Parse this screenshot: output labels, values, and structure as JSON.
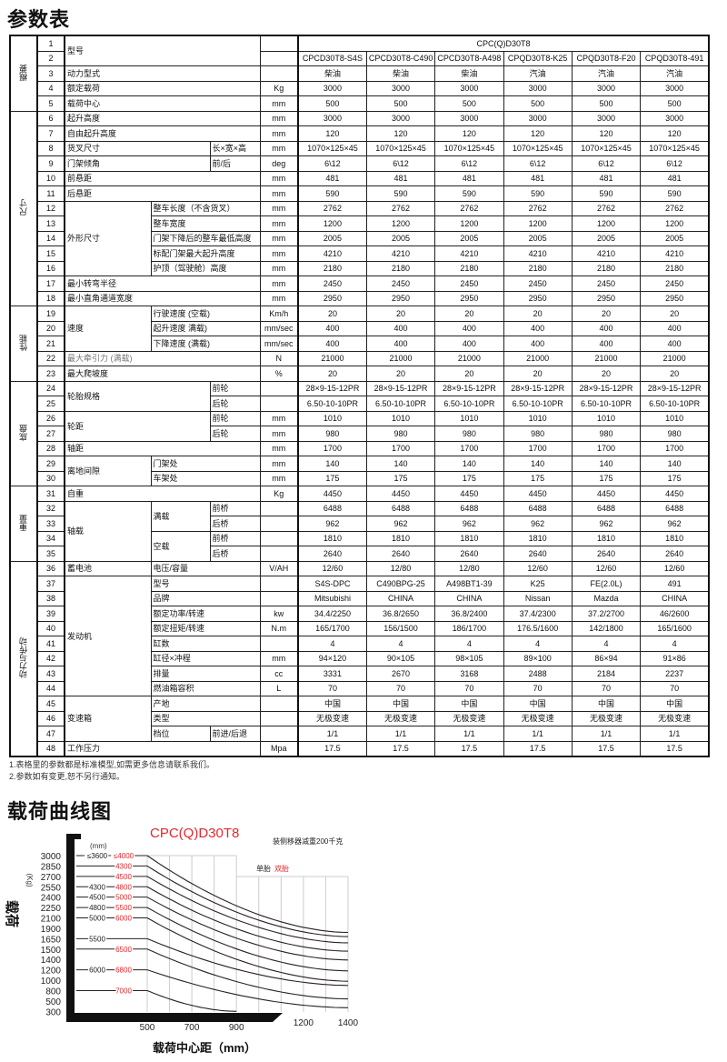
{
  "titles": {
    "spec": "参数表",
    "chart": "载荷曲线图"
  },
  "table": {
    "rows": [
      {
        "cat": "概要",
        "no": "1",
        "a": "型号",
        "unit": "",
        "v": [
          "CPC(Q)D30T8"
        ]
      },
      {
        "no": "2",
        "unit": "",
        "v": [
          "CPCD30T8-S4S",
          "CPCD30T8-C490",
          "CPCD30T8-A498",
          "CPQD30T8-K25",
          "CPQD30T8-F20",
          "CPQD30T8-491"
        ]
      },
      {
        "no": "3",
        "a": "动力型式",
        "unit": "",
        "v": [
          "柴油",
          "柴油",
          "柴油",
          "汽油",
          "汽油",
          "汽油"
        ]
      },
      {
        "no": "4",
        "a": "额定载荷",
        "unit": "Kg",
        "v": [
          "3000",
          "3000",
          "3000",
          "3000",
          "3000",
          "3000"
        ]
      },
      {
        "no": "5",
        "a": "载荷中心",
        "unit": "mm",
        "v": [
          "500",
          "500",
          "500",
          "500",
          "500",
          "500"
        ]
      },
      {
        "cat": "尺寸",
        "no": "6",
        "a": "起升高度",
        "unit": "mm",
        "v": [
          "3000",
          "3000",
          "3000",
          "3000",
          "3000",
          "3000"
        ]
      },
      {
        "no": "7",
        "a": "自由起升高度",
        "unit": "mm",
        "v": [
          "120",
          "120",
          "120",
          "120",
          "120",
          "120"
        ]
      },
      {
        "no": "8",
        "a": "货叉尺寸",
        "c": "长×宽×高",
        "unit": "mm",
        "v": [
          "1070×125×45",
          "1070×125×45",
          "1070×125×45",
          "1070×125×45",
          "1070×125×45",
          "1070×125×45"
        ]
      },
      {
        "no": "9",
        "a": "门架倾角",
        "c": "前/后",
        "unit": "deg",
        "v": [
          "6\\12",
          "6\\12",
          "6\\12",
          "6\\12",
          "6\\12",
          "6\\12"
        ]
      },
      {
        "no": "10",
        "a": "前悬距",
        "unit": "mm",
        "v": [
          "481",
          "481",
          "481",
          "481",
          "481",
          "481"
        ]
      },
      {
        "no": "11",
        "a": "后悬距",
        "unit": "mm",
        "v": [
          "590",
          "590",
          "590",
          "590",
          "590",
          "590"
        ]
      },
      {
        "no": "12",
        "a": "外形尺寸",
        "b": "整车长度（不含货叉）",
        "unit": "mm",
        "v": [
          "2762",
          "2762",
          "2762",
          "2762",
          "2762",
          "2762"
        ]
      },
      {
        "no": "13",
        "b": "整车宽度",
        "unit": "mm",
        "v": [
          "1200",
          "1200",
          "1200",
          "1200",
          "1200",
          "1200"
        ]
      },
      {
        "no": "14",
        "b": "门架下降后的整车最低高度",
        "unit": "mm",
        "v": [
          "2005",
          "2005",
          "2005",
          "2005",
          "2005",
          "2005"
        ]
      },
      {
        "no": "15",
        "b": "标配门架最大起升高度",
        "unit": "mm",
        "v": [
          "4210",
          "4210",
          "4210",
          "4210",
          "4210",
          "4210"
        ]
      },
      {
        "no": "16",
        "b": "护顶（驾驶舱）高度",
        "unit": "mm",
        "v": [
          "2180",
          "2180",
          "2180",
          "2180",
          "2180",
          "2180"
        ]
      },
      {
        "no": "17",
        "a": "最小转弯半径",
        "unit": "mm",
        "v": [
          "2450",
          "2450",
          "2450",
          "2450",
          "2450",
          "2450"
        ]
      },
      {
        "no": "18",
        "a": "最小直角通道宽度",
        "unit": "mm",
        "v": [
          "2950",
          "2950",
          "2950",
          "2950",
          "2950",
          "2950"
        ]
      },
      {
        "cat": "性能",
        "no": "19",
        "a": "速度",
        "b": "行驶速度 (空载)",
        "unit": "Km/h",
        "v": [
          "20",
          "20",
          "20",
          "20",
          "20",
          "20"
        ]
      },
      {
        "no": "20",
        "b": "起升速度 满载)",
        "unit": "mm/sec",
        "v": [
          "400",
          "400",
          "400",
          "400",
          "400",
          "400"
        ]
      },
      {
        "no": "21",
        "b": "下降速度 (满载)",
        "unit": "mm/sec",
        "v": [
          "400",
          "400",
          "400",
          "400",
          "400",
          "400"
        ]
      },
      {
        "no": "22",
        "a": "最大牵引力 (满载)",
        "unit": "N",
        "v": [
          "21000",
          "21000",
          "21000",
          "21000",
          "21000",
          "21000"
        ]
      },
      {
        "no": "23",
        "a": "最大爬坡度",
        "unit": "%",
        "v": [
          "20",
          "20",
          "20",
          "20",
          "20",
          "20"
        ]
      },
      {
        "cat": "底盘",
        "no": "24",
        "a": "轮胎规格",
        "c": "前轮",
        "unit": "",
        "v": [
          "28×9-15-12PR",
          "28×9-15-12PR",
          "28×9-15-12PR",
          "28×9-15-12PR",
          "28×9-15-12PR",
          "28×9-15-12PR"
        ]
      },
      {
        "no": "25",
        "c": "后轮",
        "unit": "",
        "v": [
          "6.50-10-10PR",
          "6.50-10-10PR",
          "6.50-10-10PR",
          "6.50-10-10PR",
          "6.50-10-10PR",
          "6.50-10-10PR"
        ]
      },
      {
        "no": "26",
        "a": "轮距",
        "c": "前轮",
        "unit": "mm",
        "v": [
          "1010",
          "1010",
          "1010",
          "1010",
          "1010",
          "1010"
        ]
      },
      {
        "no": "27",
        "c": "后轮",
        "unit": "mm",
        "v": [
          "980",
          "980",
          "980",
          "980",
          "980",
          "980"
        ]
      },
      {
        "no": "28",
        "a": "轴距",
        "unit": "mm",
        "v": [
          "1700",
          "1700",
          "1700",
          "1700",
          "1700",
          "1700"
        ]
      },
      {
        "no": "29",
        "a": "离地间隙",
        "b": "门架处",
        "unit": "mm",
        "v": [
          "140",
          "140",
          "140",
          "140",
          "140",
          "140"
        ]
      },
      {
        "no": "30",
        "b": "车架处",
        "unit": "mm",
        "v": [
          "175",
          "175",
          "175",
          "175",
          "175",
          "175"
        ]
      },
      {
        "cat": "重量",
        "no": "31",
        "a": "自重",
        "unit": "Kg",
        "v": [
          "4450",
          "4450",
          "4450",
          "4450",
          "4450",
          "4450"
        ]
      },
      {
        "no": "32",
        "a": "轴载",
        "b": "满载",
        "c": "前桥",
        "unit": "",
        "v": [
          "6488",
          "6488",
          "6488",
          "6488",
          "6488",
          "6488"
        ]
      },
      {
        "no": "33",
        "c": "后桥",
        "unit": "",
        "v": [
          "962",
          "962",
          "962",
          "962",
          "962",
          "962"
        ]
      },
      {
        "no": "34",
        "b": "空载",
        "c": "前桥",
        "unit": "",
        "v": [
          "1810",
          "1810",
          "1810",
          "1810",
          "1810",
          "1810"
        ]
      },
      {
        "no": "35",
        "c": "后桥",
        "unit": "",
        "v": [
          "2640",
          "2640",
          "2640",
          "2640",
          "2640",
          "2640"
        ]
      },
      {
        "cat": "动力与传动",
        "no": "36",
        "a": "蓄电池",
        "b": "电压/容量",
        "unit": "V/AH",
        "v": [
          "12/60",
          "12/80",
          "12/80",
          "12/60",
          "12/60",
          "12/60"
        ]
      },
      {
        "no": "37",
        "a": "发动机",
        "b": "型号",
        "unit": "",
        "v": [
          "S4S-DPC",
          "C490BPG-25",
          "A498BT1-39",
          "K25",
          "FE(2.0L)",
          "491"
        ]
      },
      {
        "no": "38",
        "b": "品牌",
        "unit": "",
        "v": [
          "Mitsubishi",
          "CHINA",
          "CHINA",
          "Nissan",
          "Mazda",
          "CHINA"
        ]
      },
      {
        "no": "39",
        "b": "额定功率/转速",
        "unit": "kw",
        "v": [
          "34.4/2250",
          "36.8/2650",
          "36.8/2400",
          "37.4/2300",
          "37.2/2700",
          "46/2600"
        ]
      },
      {
        "no": "40",
        "b": "额定扭矩/转速",
        "unit": "N.m",
        "v": [
          "165/1700",
          "156/1500",
          "186/1700",
          "176.5/1600",
          "142/1800",
          "165/1600"
        ]
      },
      {
        "no": "41",
        "b": "缸数",
        "unit": "",
        "v": [
          "4",
          "4",
          "4",
          "4",
          "4",
          "4"
        ]
      },
      {
        "no": "42",
        "b": "缸径×冲程",
        "unit": "mm",
        "v": [
          "94×120",
          "90×105",
          "98×105",
          "89×100",
          "86×94",
          "91×86"
        ]
      },
      {
        "no": "43",
        "b": "排量",
        "unit": "cc",
        "v": [
          "3331",
          "2670",
          "3168",
          "2488",
          "2184",
          "2237"
        ]
      },
      {
        "no": "44",
        "b": "燃油箱容积",
        "unit": "L",
        "v": [
          "70",
          "70",
          "70",
          "70",
          "70",
          "70"
        ]
      },
      {
        "no": "45",
        "a": "变速箱",
        "b": "产地",
        "unit": "",
        "v": [
          "中国",
          "中国",
          "中国",
          "中国",
          "中国",
          "中国"
        ]
      },
      {
        "no": "46",
        "b": "类型",
        "unit": "",
        "v": [
          "无极变速",
          "无极变速",
          "无极变速",
          "无极变速",
          "无极变速",
          "无极变速"
        ]
      },
      {
        "no": "47",
        "b": "档位",
        "c": "前进/后退",
        "unit": "",
        "v": [
          "1/1",
          "1/1",
          "1/1",
          "1/1",
          "1/1",
          "1/1"
        ]
      },
      {
        "no": "48",
        "a": "工作压力",
        "unit": "Mpa",
        "v": [
          "17.5",
          "17.5",
          "17.5",
          "17.5",
          "17.5",
          "17.5"
        ]
      }
    ]
  },
  "notes": [
    "1.表格里的参数都是标准模型,如需更多信息请联系我们。",
    "2.参数如有变更,恕不另行通知。"
  ],
  "chart_data": {
    "type": "line",
    "title": "CPC(Q)D30T8",
    "annotation": "装侧移器减重200千克",
    "legend": [
      {
        "name": "单胎",
        "color": "#222222"
      },
      {
        "name": "双胎",
        "color": "#e8262b"
      }
    ],
    "xlabel": "载荷中心距（mm）",
    "ylabel": "载荷",
    "yunit": "(Kg)",
    "mast_unit": "(mm)",
    "x_ticks": [
      "500",
      "700",
      "900",
      "1200",
      "1400"
    ],
    "xlim": [
      500,
      1400
    ],
    "y_ticks": [
      "3000",
      "2850",
      "2700",
      "2550",
      "2400",
      "2250",
      "2100",
      "1900",
      "1650",
      "1500",
      "1400",
      "1200",
      "1000",
      "800",
      "500",
      "300"
    ],
    "grid": "vertical",
    "curves": [
      {
        "single": "≤3600",
        "dual": "≤4000",
        "points": [
          [
            500,
            3000
          ],
          [
            1400,
            1800
          ]
        ]
      },
      {
        "single": "",
        "dual": "4300",
        "points": [
          [
            500,
            2850
          ],
          [
            1400,
            1700
          ]
        ]
      },
      {
        "single": "",
        "dual": "4500",
        "points": [
          [
            500,
            2700
          ],
          [
            1400,
            1590
          ]
        ]
      },
      {
        "single": "4300",
        "dual": "4800",
        "points": [
          [
            500,
            2550
          ],
          [
            1400,
            1480
          ]
        ]
      },
      {
        "single": "4500",
        "dual": "5000",
        "points": [
          [
            500,
            2400
          ],
          [
            1400,
            1390
          ]
        ]
      },
      {
        "single": "4800",
        "dual": "5500",
        "points": [
          [
            500,
            2250
          ],
          [
            1400,
            1180
          ]
        ]
      },
      {
        "single": "5000",
        "dual": "6000",
        "points": [
          [
            500,
            2100
          ],
          [
            1400,
            980
          ]
        ]
      },
      {
        "single": "5500",
        "dual": "",
        "points": [
          [
            500,
            1650
          ],
          [
            1400,
            900
          ]
        ]
      },
      {
        "single": "",
        "dual": "6500",
        "points": [
          [
            500,
            1500
          ],
          [
            1400,
            560
          ]
        ]
      },
      {
        "single": "6000",
        "dual": "6800",
        "points": [
          [
            500,
            1200
          ],
          [
            1400,
            370
          ]
        ]
      },
      {
        "single": "",
        "dual": "7000",
        "points": [
          [
            500,
            800
          ],
          [
            900,
            300
          ]
        ]
      }
    ],
    "colors": {
      "single": "#222222",
      "dual": "#e8262b",
      "curve": "#2a2020",
      "frame": "#111111"
    }
  }
}
